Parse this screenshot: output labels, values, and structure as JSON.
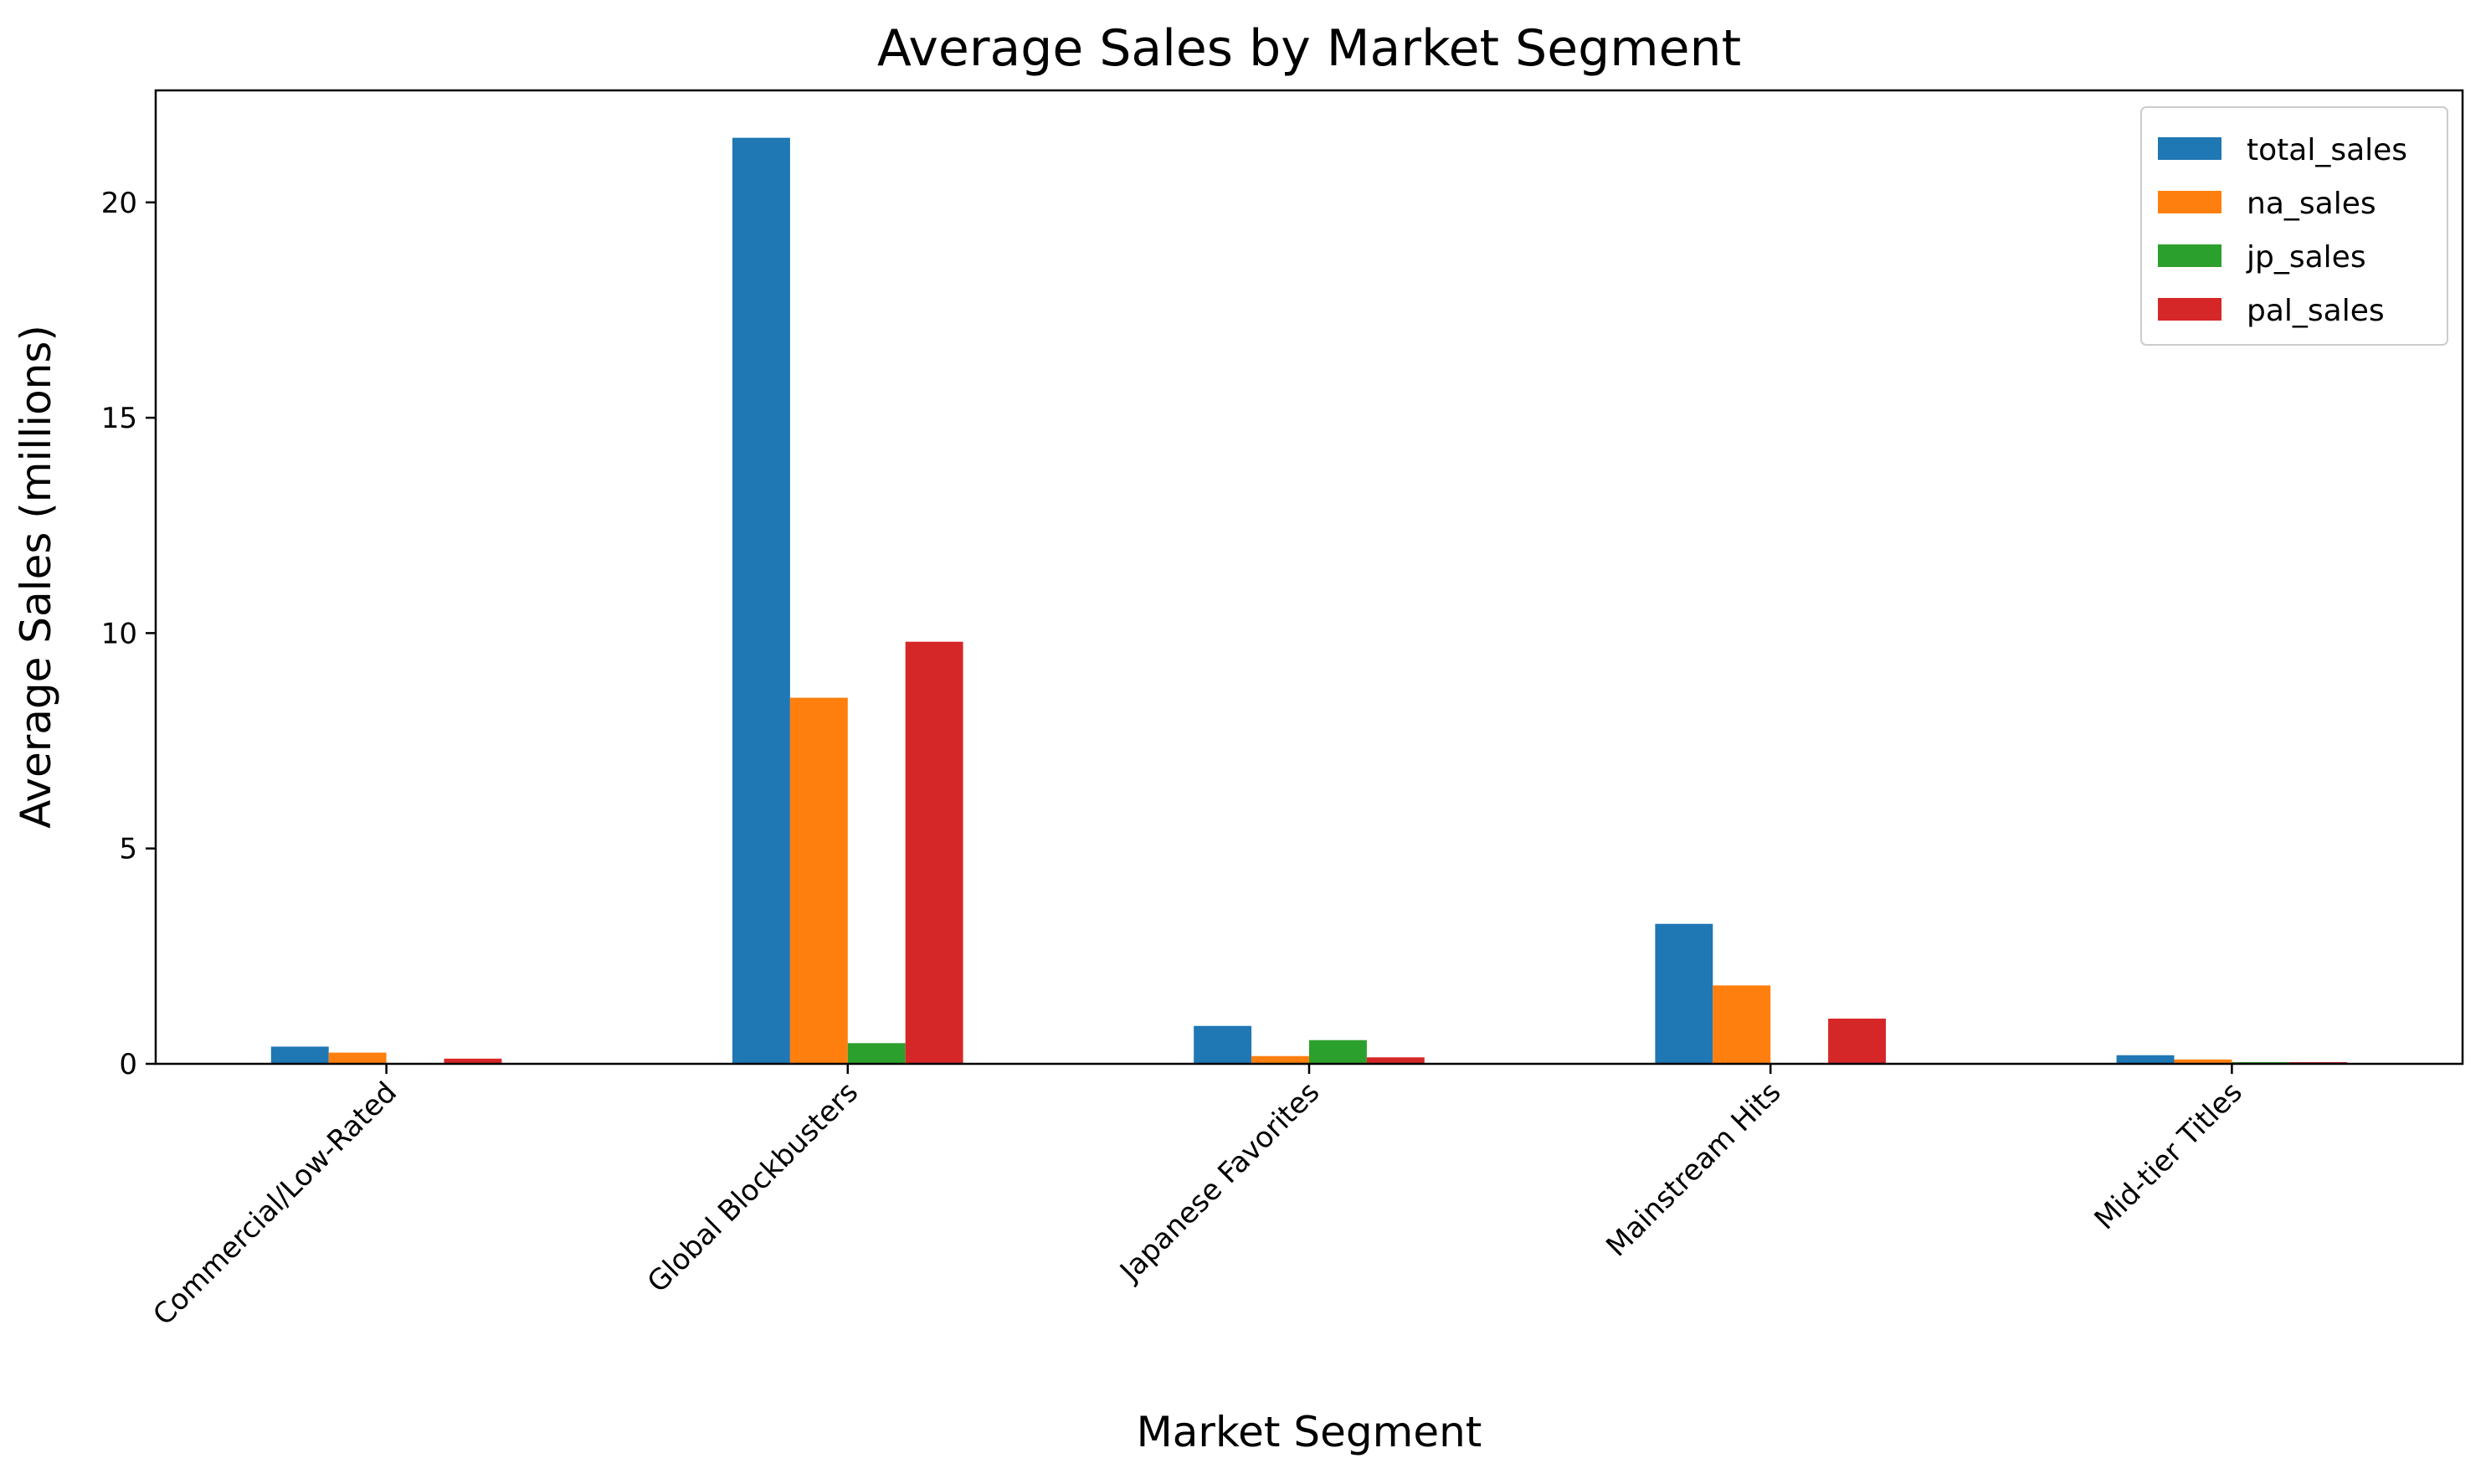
{
  "chart_data": {
    "type": "bar",
    "title": "Average Sales by Market Segment",
    "xlabel": "Market Segment",
    "ylabel": "Average Sales (millions)",
    "categories": [
      "Commercial/Low-Rated",
      "Global Blockbusters",
      "Japanese Favorites",
      "Mainstream Hits",
      "Mid-tier Titles"
    ],
    "ylim": [
      0,
      22.6
    ],
    "yticks": [
      0,
      5,
      10,
      15,
      20
    ],
    "grid": false,
    "legend_position": "top-right",
    "series": [
      {
        "name": "total_sales",
        "color": "#1f77b4",
        "values": [
          0.4,
          21.5,
          0.88,
          3.25,
          0.2
        ]
      },
      {
        "name": "na_sales",
        "color": "#ff7f0e",
        "values": [
          0.26,
          8.5,
          0.18,
          1.82,
          0.1
        ]
      },
      {
        "name": "jp_sales",
        "color": "#2ca02c",
        "values": [
          0.0,
          0.48,
          0.55,
          0.0,
          0.04
        ]
      },
      {
        "name": "pal_sales",
        "color": "#d62728",
        "values": [
          0.12,
          9.8,
          0.15,
          1.05,
          0.04
        ]
      }
    ]
  }
}
